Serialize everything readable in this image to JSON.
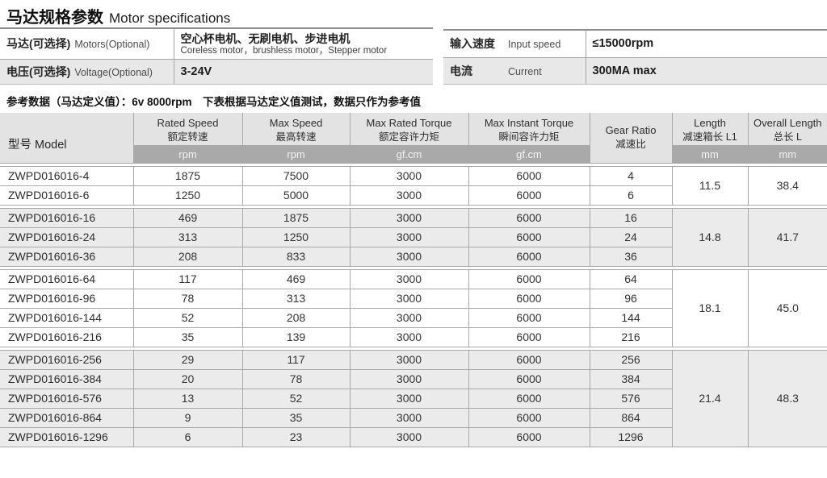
{
  "title": {
    "zh": "马达规格参数",
    "en": "Motor specifications"
  },
  "top_left_table": {
    "rows": [
      {
        "label_zh": "马达(可选择)",
        "label_en": "Motors(Optional)",
        "value_zh": "空心杯电机、无刷电机、步进电机",
        "value_en": "Coreless motor，brushless motor，Stepper motor"
      },
      {
        "label_zh": "电压(可选择)",
        "label_en": "Voltage(Optional)",
        "value": "3-24V"
      }
    ]
  },
  "top_right_table": {
    "rows": [
      {
        "label_zh": "输入速度",
        "label_en": "Input speed",
        "value": "≤15000rpm"
      },
      {
        "label_zh": "电流",
        "label_en": "Current",
        "value": "300MA max"
      }
    ]
  },
  "reference_note": "参考数据（马达定义值）：6v 8000rpm　下表根据马达定义值测试，数据只作为参考值",
  "table": {
    "model_header": {
      "zh": "型号",
      "en": "Model"
    },
    "columns": [
      {
        "en": "Rated Speed",
        "zh": "额定转速",
        "unit": "rpm"
      },
      {
        "en": "Max Speed",
        "zh": "最高转速",
        "unit": "rpm"
      },
      {
        "en": "Max Rated Torque",
        "zh": "额定容许力矩",
        "unit": "gf.cm"
      },
      {
        "en": "Max Instant Torque",
        "zh": "瞬间容许力矩",
        "unit": "gf.cm"
      },
      {
        "en": "Gear Ratio",
        "zh": "减速比",
        "unit": ""
      },
      {
        "en": "Length",
        "zh": "减速箱长 L1",
        "unit": "mm"
      },
      {
        "en": "Overall Length",
        "zh": "总长 L",
        "unit": "mm"
      }
    ],
    "groups": [
      {
        "shaded": false,
        "length_l1": "11.5",
        "overall_length": "38.4",
        "rows": [
          {
            "model": "ZWPD016016-4",
            "rated_speed": "1875",
            "max_speed": "7500",
            "max_rated_torque": "3000",
            "max_instant_torque": "6000",
            "gear_ratio": "4"
          },
          {
            "model": "ZWPD016016-6",
            "rated_speed": "1250",
            "max_speed": "5000",
            "max_rated_torque": "3000",
            "max_instant_torque": "6000",
            "gear_ratio": "6"
          }
        ]
      },
      {
        "shaded": true,
        "length_l1": "14.8",
        "overall_length": "41.7",
        "rows": [
          {
            "model": "ZWPD016016-16",
            "rated_speed": "469",
            "max_speed": "1875",
            "max_rated_torque": "3000",
            "max_instant_torque": "6000",
            "gear_ratio": "16"
          },
          {
            "model": "ZWPD016016-24",
            "rated_speed": "313",
            "max_speed": "1250",
            "max_rated_torque": "3000",
            "max_instant_torque": "6000",
            "gear_ratio": "24"
          },
          {
            "model": "ZWPD016016-36",
            "rated_speed": "208",
            "max_speed": "833",
            "max_rated_torque": "3000",
            "max_instant_torque": "6000",
            "gear_ratio": "36"
          }
        ]
      },
      {
        "shaded": false,
        "length_l1": "18.1",
        "overall_length": "45.0",
        "rows": [
          {
            "model": "ZWPD016016-64",
            "rated_speed": "117",
            "max_speed": "469",
            "max_rated_torque": "3000",
            "max_instant_torque": "6000",
            "gear_ratio": "64"
          },
          {
            "model": "ZWPD016016-96",
            "rated_speed": "78",
            "max_speed": "313",
            "max_rated_torque": "3000",
            "max_instant_torque": "6000",
            "gear_ratio": "96"
          },
          {
            "model": "ZWPD016016-144",
            "rated_speed": "52",
            "max_speed": "208",
            "max_rated_torque": "3000",
            "max_instant_torque": "6000",
            "gear_ratio": "144"
          },
          {
            "model": "ZWPD016016-216",
            "rated_speed": "35",
            "max_speed": "139",
            "max_rated_torque": "3000",
            "max_instant_torque": "6000",
            "gear_ratio": "216"
          }
        ]
      },
      {
        "shaded": true,
        "length_l1": "21.4",
        "overall_length": "48.3",
        "rows": [
          {
            "model": "ZWPD016016-256",
            "rated_speed": "29",
            "max_speed": "117",
            "max_rated_torque": "3000",
            "max_instant_torque": "6000",
            "gear_ratio": "256"
          },
          {
            "model": "ZWPD016016-384",
            "rated_speed": "20",
            "max_speed": "78",
            "max_rated_torque": "3000",
            "max_instant_torque": "6000",
            "gear_ratio": "384"
          },
          {
            "model": "ZWPD016016-576",
            "rated_speed": "13",
            "max_speed": "52",
            "max_rated_torque": "3000",
            "max_instant_torque": "6000",
            "gear_ratio": "576"
          },
          {
            "model": "ZWPD016016-864",
            "rated_speed": "9",
            "max_speed": "35",
            "max_rated_torque": "3000",
            "max_instant_torque": "6000",
            "gear_ratio": "864"
          },
          {
            "model": "ZWPD016016-1296",
            "rated_speed": "6",
            "max_speed": "23",
            "max_rated_torque": "3000",
            "max_instant_torque": "6000",
            "gear_ratio": "1296"
          }
        ]
      }
    ]
  }
}
